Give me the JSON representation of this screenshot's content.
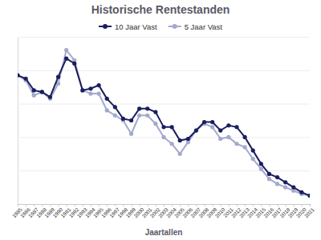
{
  "chart_data": {
    "type": "line",
    "title": "Historische Rentestanden",
    "x_label": "Jaartallen",
    "categories": [
      "1985",
      "1986",
      "1987",
      "1988",
      "1989",
      "1990",
      "1991",
      "1992",
      "1993",
      "1994",
      "1995",
      "1996",
      "1997",
      "1998",
      "1999",
      "2000",
      "2001",
      "2002",
      "2003",
      "2004",
      "2005",
      "2006",
      "2007",
      "2008",
      "2009",
      "2010",
      "2011",
      "2012",
      "2013",
      "2014",
      "2015",
      "2016",
      "2017",
      "2018",
      "2019",
      "2020",
      "2021"
    ],
    "series": [
      {
        "name": "10 Jaar Vast",
        "color": "#1b1f5e",
        "marker": "circle",
        "values": [
          8.7,
          8.5,
          7.8,
          7.7,
          7.4,
          8.6,
          9.7,
          9.4,
          7.8,
          7.9,
          8.1,
          7.3,
          6.8,
          6.1,
          6.0,
          6.7,
          6.7,
          6.5,
          5.6,
          5.6,
          4.8,
          4.9,
          5.4,
          5.9,
          5.9,
          5.4,
          5.7,
          5.6,
          5.0,
          4.2,
          3.4,
          2.8,
          2.6,
          2.3,
          2.0,
          1.7,
          1.5
        ]
      },
      {
        "name": "5 Jaar Vast",
        "color": "#a4a9cc",
        "marker": "circle",
        "values": [
          8.7,
          8.4,
          7.5,
          7.7,
          7.3,
          8.2,
          10.2,
          9.6,
          7.8,
          7.6,
          7.6,
          6.6,
          6.3,
          6.0,
          5.2,
          6.3,
          6.3,
          5.8,
          5.0,
          4.6,
          4.0,
          4.7,
          5.4,
          5.8,
          5.6,
          4.9,
          5.0,
          4.6,
          4.4,
          3.7,
          3.1,
          2.5,
          2.2,
          2.0,
          1.8,
          1.6,
          1.5
        ]
      }
    ],
    "ylim": [
      1,
      11
    ],
    "yticks": [
      1,
      3,
      5,
      7,
      9,
      11
    ],
    "grid": true,
    "tick_labels": "x",
    "legend": "top"
  }
}
